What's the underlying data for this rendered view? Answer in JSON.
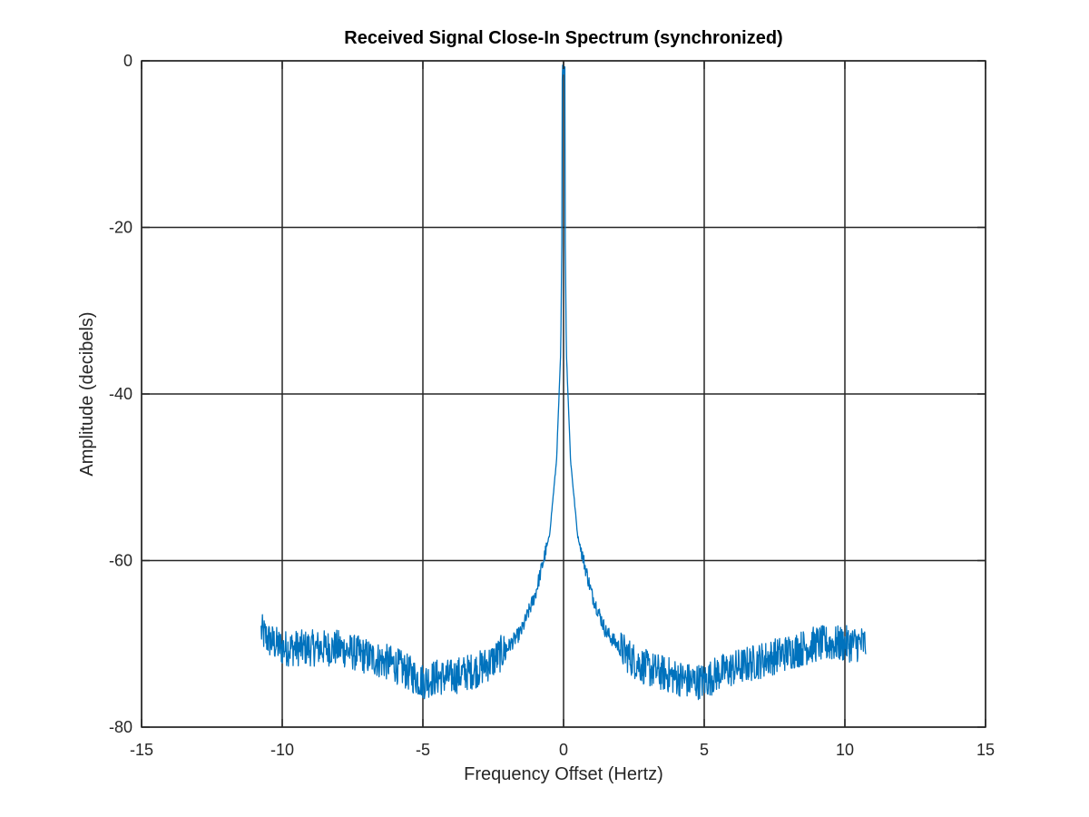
{
  "chart_data": {
    "type": "line",
    "title": "Received Signal Close-In Spectrum (synchronized)",
    "xlabel": "Frequency Offset (Hertz)",
    "ylabel": "Amplitude (decibels)",
    "xlim": [
      -15,
      15
    ],
    "ylim": [
      -80,
      0
    ],
    "xticks": [
      -15,
      -10,
      -5,
      0,
      5,
      10,
      15
    ],
    "yticks": [
      0,
      -20,
      -40,
      -60,
      -80
    ],
    "xtick_labels": [
      "-15",
      "-10",
      "-5",
      "0",
      "5",
      "10",
      "15"
    ],
    "ytick_labels": [
      "0",
      "-20",
      "-40",
      "-60",
      "-80"
    ],
    "grid": true,
    "legend": "none",
    "series": [
      {
        "color": "#0072bd",
        "x_range": [
          -10.75,
          10.75
        ],
        "x": [
          -10.75,
          -10.5,
          -10.25,
          -10,
          -9.5,
          -9,
          -8.5,
          -8,
          -7.5,
          -7,
          -6.5,
          -6,
          -5.5,
          -5,
          -4.5,
          -4,
          -3.5,
          -3,
          -2.5,
          -2,
          -1.5,
          -1,
          -0.5,
          -0.25,
          -0.1,
          0,
          0.1,
          0.25,
          0.5,
          1,
          1.5,
          2,
          2.5,
          3,
          3.5,
          4,
          4.5,
          5,
          5.5,
          6,
          6.5,
          7,
          7.5,
          8,
          8.5,
          9,
          9.5,
          10,
          10.5,
          10.75
        ],
        "y": [
          -68.5,
          -69.5,
          -70,
          -70.5,
          -70.5,
          -70.5,
          -70.5,
          -70.5,
          -71,
          -71.5,
          -72,
          -72.5,
          -73.5,
          -74.5,
          -74,
          -74,
          -73.5,
          -73,
          -72,
          -70.5,
          -68.5,
          -64,
          -57,
          -48,
          -35,
          -1,
          -35,
          -48,
          -57,
          -64,
          -68.5,
          -70.5,
          -72,
          -73,
          -73.5,
          -74,
          -74.5,
          -74.5,
          -73.5,
          -73,
          -72.5,
          -72,
          -71.5,
          -71,
          -70.5,
          -70,
          -70,
          -70,
          -70,
          -70
        ]
      }
    ]
  }
}
